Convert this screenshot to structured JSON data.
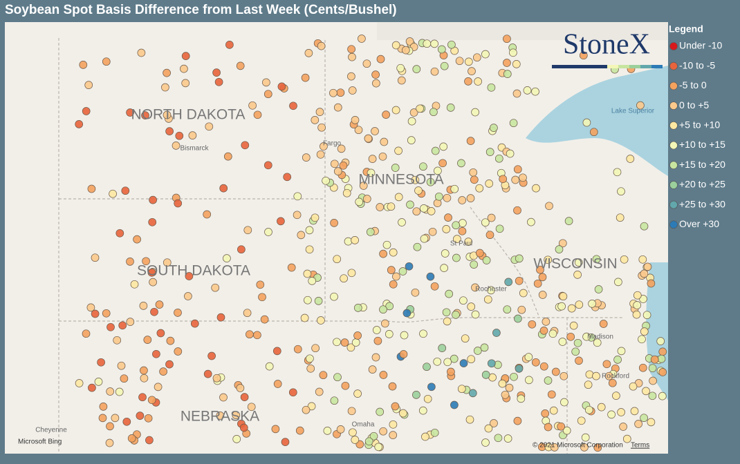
{
  "header": {
    "title": "Soybean Spot Basis Difference from Last Week (Cents/Bushel)"
  },
  "legend": {
    "title": "Legend",
    "items": [
      {
        "label": "Under -10",
        "color": "#d7191c"
      },
      {
        "label": "-10 to -5",
        "color": "#e8643c"
      },
      {
        "label": "-5 to 0",
        "color": "#f4a25e"
      },
      {
        "label": "0 to +5",
        "color": "#fbc98c"
      },
      {
        "label": "+5 to +10",
        "color": "#fde8a2"
      },
      {
        "label": "+10 to +15",
        "color": "#f3f6b6"
      },
      {
        "label": "+15 to +20",
        "color": "#c8e5a0"
      },
      {
        "label": "+20 to +25",
        "color": "#9bcf9c"
      },
      {
        "label": "+25 to +30",
        "color": "#62a7ab"
      },
      {
        "label": "Over +30",
        "color": "#2c7bb6"
      }
    ]
  },
  "map": {
    "states": [
      "NORTH DAKOTA",
      "MINNESOTA",
      "SOUTH DAKOTA",
      "WISCONSIN",
      "NEBRASKA"
    ],
    "places": [
      "Bismarck",
      "Fargo",
      "St Paul",
      "Rochester",
      "Madison",
      "Lake Superior",
      "Cheyenne",
      "Omaha",
      "Rockford"
    ],
    "logo": "StoneX",
    "attribution": "Microsoft Bing",
    "copyright": "© 2021 Microsoft Corporation",
    "terms": "Terms"
  }
}
